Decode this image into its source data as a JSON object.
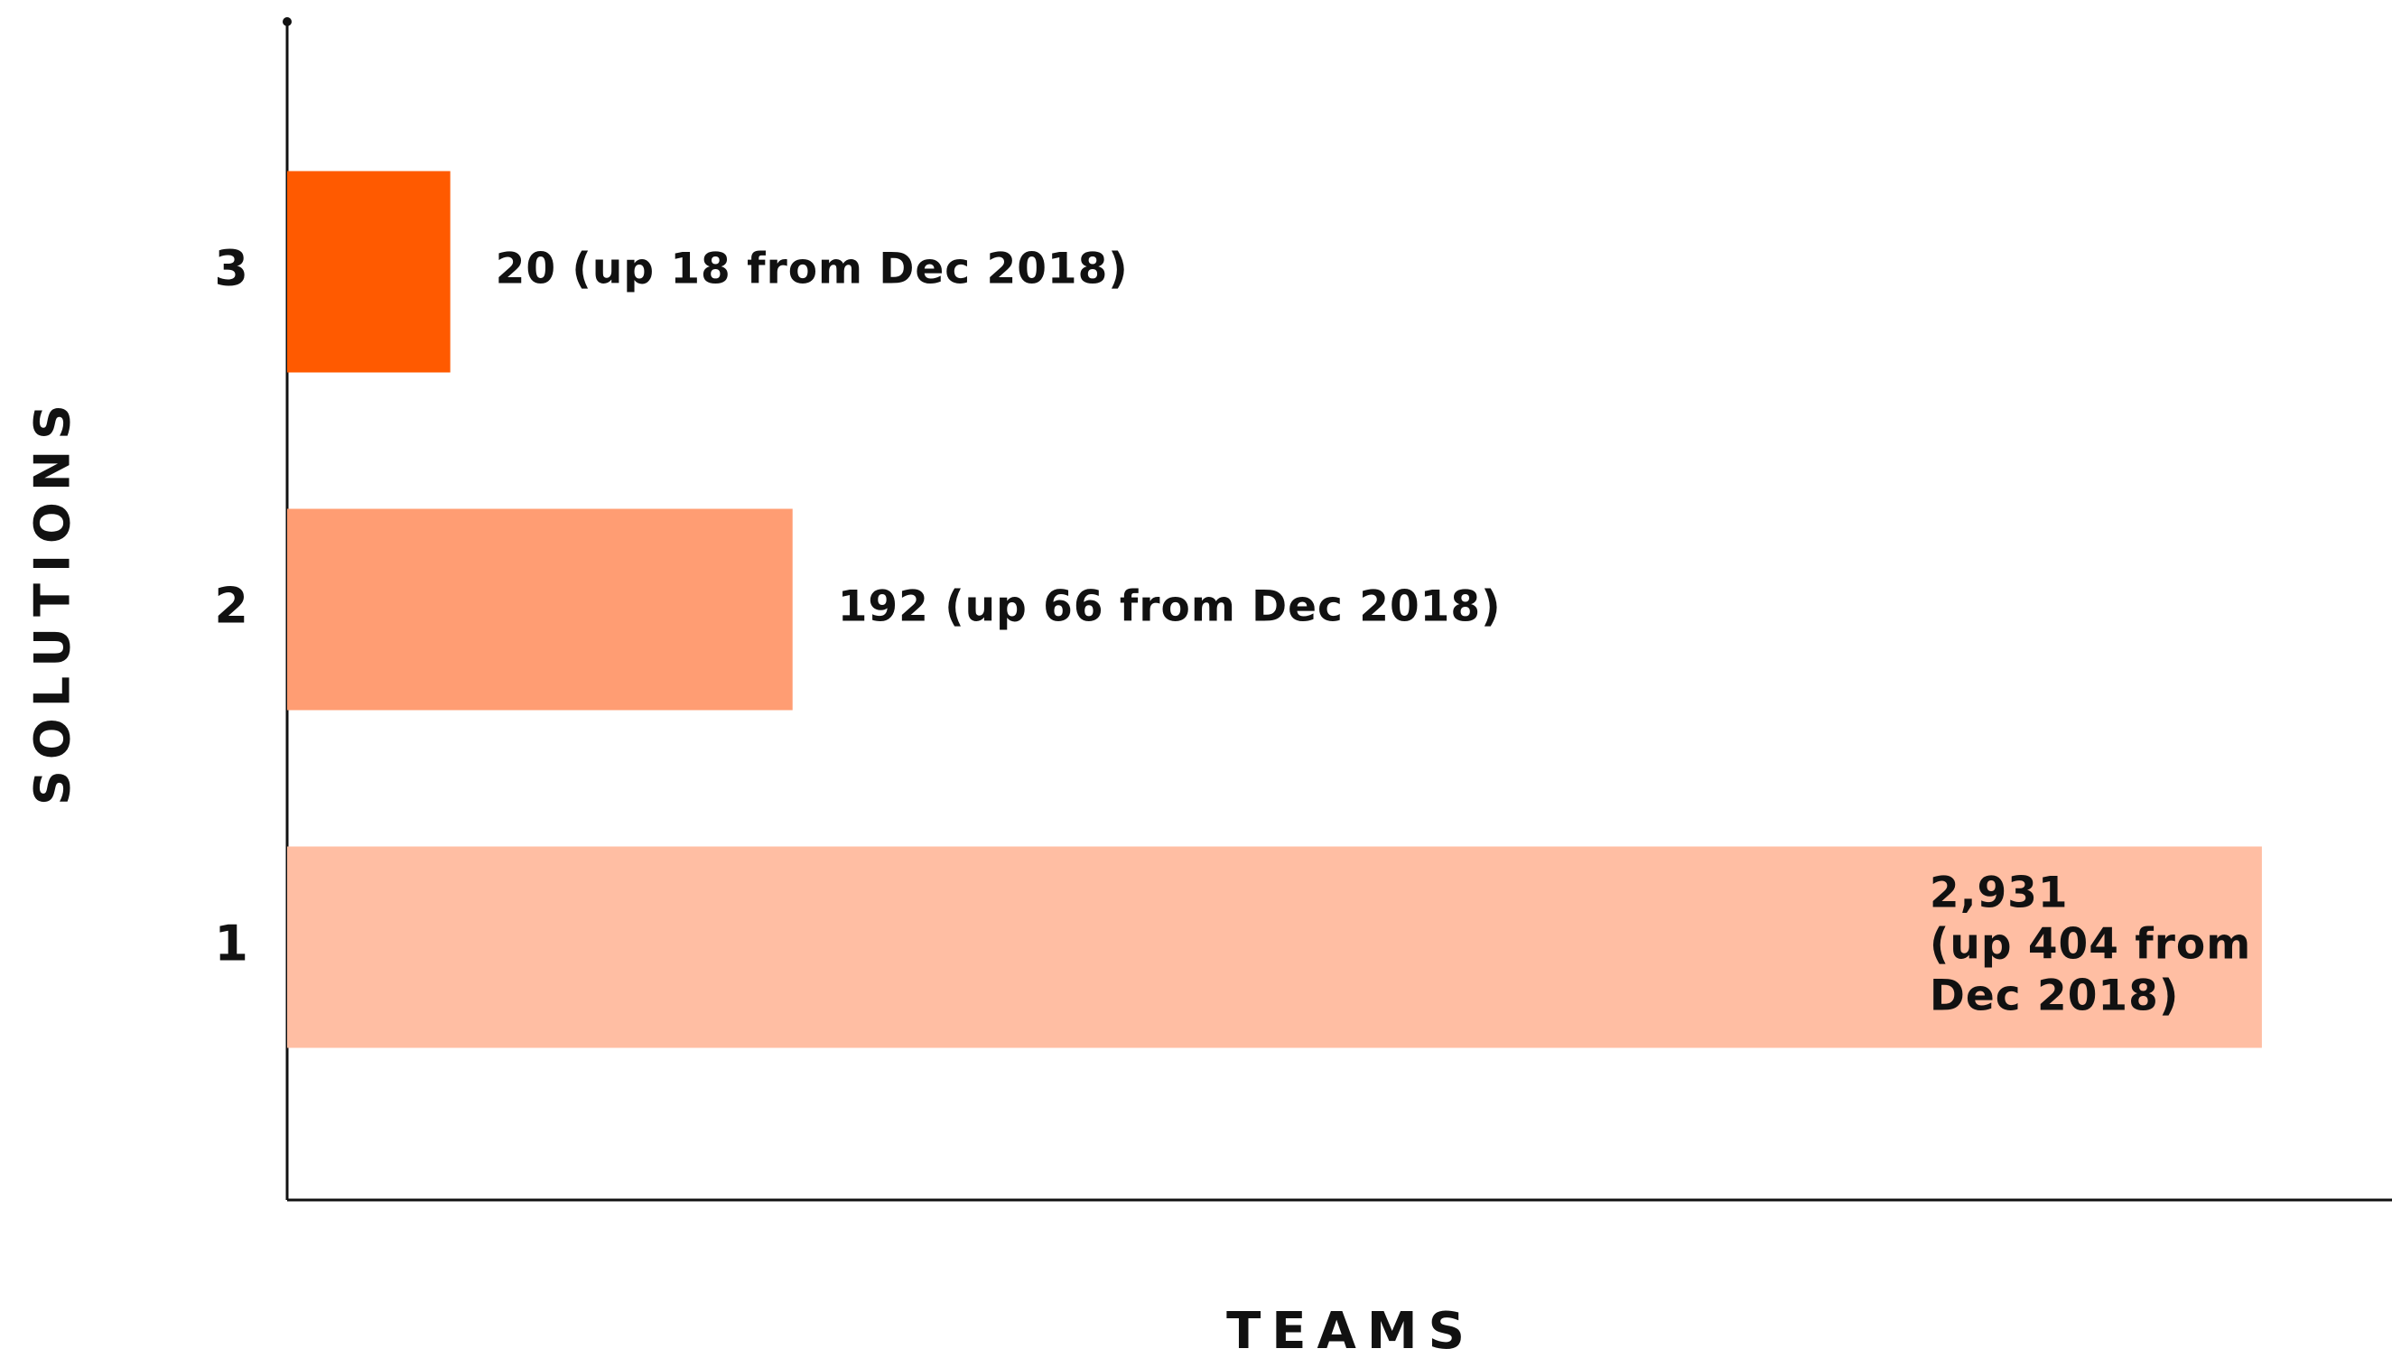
{
  "chart_data": {
    "type": "bar",
    "orientation": "horizontal",
    "x_label": "TEAMS",
    "y_label": "SOLUTIONS",
    "categories": [
      "1",
      "2",
      "3"
    ],
    "values": [
      2931,
      192,
      20
    ],
    "value_labels": [
      [
        "2,931",
        "(up 404 from",
        "Dec 2018)"
      ],
      [
        "192 (up 66 from Dec 2018)"
      ],
      [
        "20 (up 18 from Dec 2018)"
      ]
    ],
    "colors": [
      "#ffbea3",
      "#ff9d73",
      "#ff5a00"
    ],
    "xscale": "sqrt",
    "xlim": [
      0,
      3330
    ]
  }
}
